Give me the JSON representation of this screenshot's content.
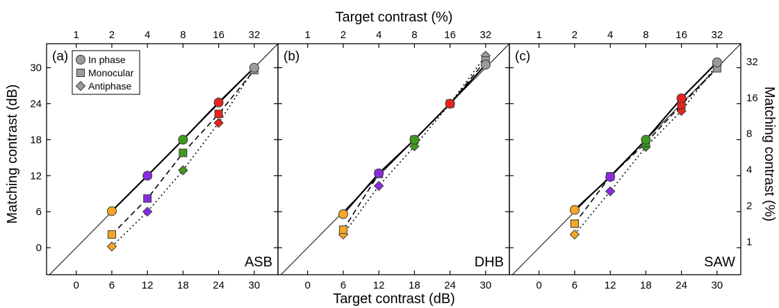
{
  "chart_data": {
    "type": "scatter",
    "xlabel_bottom": "Target contrast (dB)",
    "xlabel_top": "Target contrast (%)",
    "ylabel_left": "Matching contrast (dB)",
    "ylabel_right": "Matching contrast (%)",
    "x_ticks_db": [
      "0",
      "6",
      "12",
      "18",
      "24",
      "30"
    ],
    "x_ticks_pct": [
      "1",
      "2",
      "4",
      "8",
      "16",
      "32"
    ],
    "y_ticks_db": [
      "0",
      "6",
      "12",
      "18",
      "24",
      "30"
    ],
    "y_ticks_pct": [
      "1",
      "2",
      "4",
      "8",
      "16",
      "32"
    ],
    "xlim": [
      -5,
      34
    ],
    "ylim": [
      -4.5,
      34
    ],
    "x": [
      6,
      12,
      18,
      24,
      30
    ],
    "point_colors": [
      "#f5a623",
      "#8a2be2",
      "#3f9a1e",
      "#e8231d",
      "#9b9b9b"
    ],
    "legend": {
      "placement": "top-left",
      "entries": [
        {
          "name": "In phase",
          "marker": "circle",
          "line": "solid"
        },
        {
          "name": "Monocular",
          "marker": "square",
          "line": "dashed"
        },
        {
          "name": "Antiphase",
          "marker": "diamond",
          "line": "dotted"
        }
      ]
    },
    "panels": [
      {
        "letter": "(a)",
        "observer": "ASB",
        "series": [
          {
            "values": [
              6.1,
              12.0,
              18.0,
              24.2,
              30.0
            ]
          },
          {
            "values": [
              2.2,
              8.2,
              15.8,
              22.3,
              29.6
            ]
          },
          {
            "values": [
              0.2,
              6.0,
              12.9,
              20.8,
              29.8
            ]
          }
        ]
      },
      {
        "letter": "(b)",
        "observer": "DHB",
        "series": [
          {
            "values": [
              5.6,
              12.4,
              18.0,
              24.0,
              30.5
            ]
          },
          {
            "values": [
              3.0,
              12.3,
              18.0,
              24.0,
              31.2
            ]
          },
          {
            "values": [
              2.2,
              10.3,
              16.9,
              24.0,
              32.0
            ]
          }
        ]
      },
      {
        "letter": "(c)",
        "observer": "SAW",
        "series": [
          {
            "values": [
              6.3,
              11.8,
              18.0,
              24.9,
              30.9
            ]
          },
          {
            "values": [
              4.0,
              11.9,
              17.5,
              23.8,
              29.9
            ]
          },
          {
            "values": [
              2.2,
              9.4,
              16.8,
              22.8,
              30.5
            ]
          }
        ]
      }
    ]
  }
}
